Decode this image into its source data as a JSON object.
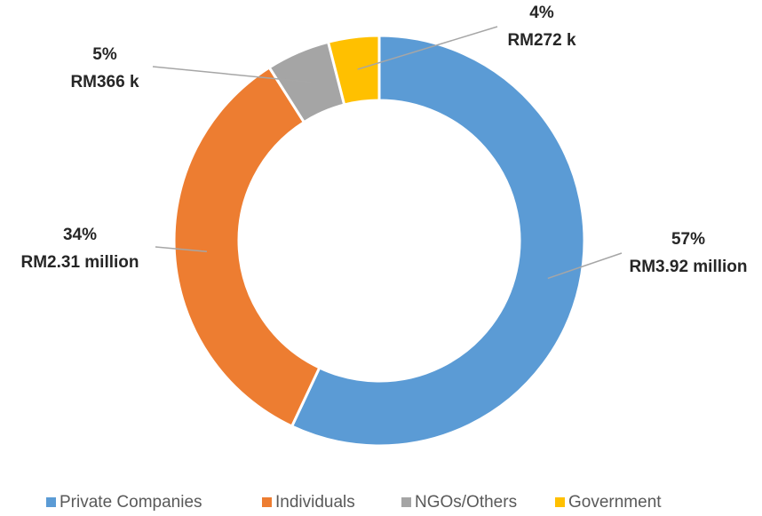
{
  "chart_data": {
    "type": "donut",
    "categories": [
      "Private Companies",
      "Individuals",
      "NGOs/Others",
      "Government"
    ],
    "values": [
      57,
      34,
      5,
      4
    ],
    "value_labels": [
      "57%",
      "34%",
      "5%",
      "4%"
    ],
    "amount_labels": [
      "RM3.92 million",
      "RM2.31 million",
      "RM366 k",
      "RM272 k"
    ],
    "colors": [
      "#5b9bd5",
      "#ed7d31",
      "#a5a5a5",
      "#ffc000"
    ],
    "legend": "bottom"
  }
}
